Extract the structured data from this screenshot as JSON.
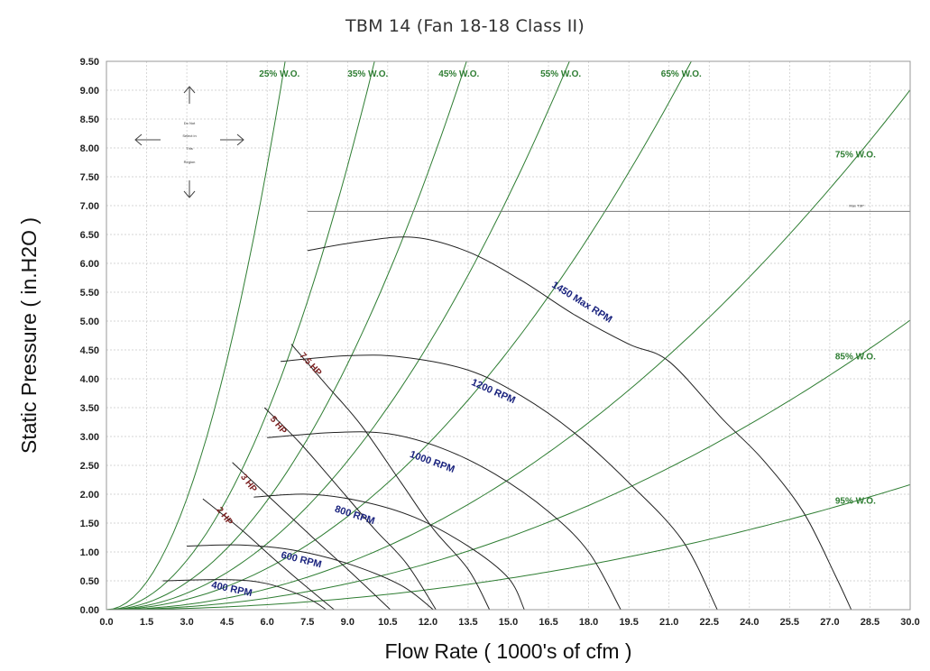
{
  "chart_data": {
    "type": "line",
    "title": "TBM 14 (Fan 18-18 Class II)",
    "xlabel": "Flow Rate ( 1000's of cfm )",
    "ylabel": "Static Pressure ( in.H2O )",
    "xlim": [
      0,
      30
    ],
    "ylim": [
      0,
      9.5
    ],
    "x_ticks": [
      "0.0",
      "1.5",
      "3.0",
      "4.5",
      "6.0",
      "7.5",
      "9.0",
      "10.5",
      "12.0",
      "13.5",
      "15.0",
      "16.5",
      "18.0",
      "19.5",
      "21.0",
      "22.5",
      "24.0",
      "25.5",
      "27.0",
      "28.5",
      "30.0"
    ],
    "y_ticks": [
      "0.00",
      "0.50",
      "1.00",
      "1.50",
      "2.00",
      "2.50",
      "3.00",
      "3.50",
      "4.00",
      "4.50",
      "5.00",
      "5.50",
      "6.00",
      "6.50",
      "7.00",
      "7.50",
      "8.00",
      "8.50",
      "9.00",
      "9.50"
    ],
    "grid": true,
    "wide_open_lines": [
      {
        "name": "25% W.O.",
        "label_x": 5.7,
        "label_y": 9.3
      },
      {
        "name": "35% W.O.",
        "label_x": 9.0,
        "label_y": 9.3
      },
      {
        "name": "45% W.O.",
        "label_x": 12.4,
        "label_y": 9.3
      },
      {
        "name": "55% W.O.",
        "label_x": 16.2,
        "label_y": 9.3
      },
      {
        "name": "65% W.O.",
        "label_x": 20.7,
        "label_y": 9.3
      },
      {
        "name": "75% W.O.",
        "label_x": 27.2,
        "label_y": 7.9
      },
      {
        "name": "85% W.O.",
        "label_x": 27.2,
        "label_y": 4.4
      },
      {
        "name": "95% W.O.",
        "label_x": 27.2,
        "label_y": 1.9
      }
    ],
    "rpm_curves": [
      {
        "name": "400 RPM",
        "points": [
          [
            2.1,
            0.5
          ],
          [
            4.5,
            0.52
          ],
          [
            6.0,
            0.45
          ],
          [
            7.5,
            0.2
          ],
          [
            8.2,
            0.0
          ]
        ],
        "label_x": 3.9,
        "label_y": 0.38,
        "label_angle": 12
      },
      {
        "name": "600 RPM",
        "points": [
          [
            3.0,
            1.1
          ],
          [
            5.0,
            1.12
          ],
          [
            7.0,
            1.03
          ],
          [
            9.0,
            0.8
          ],
          [
            11.0,
            0.42
          ],
          [
            12.2,
            0.0
          ]
        ],
        "label_x": 6.5,
        "label_y": 0.9,
        "label_angle": 14
      },
      {
        "name": "800 RPM",
        "points": [
          [
            5.5,
            1.95
          ],
          [
            7.5,
            2.0
          ],
          [
            9.5,
            1.88
          ],
          [
            11.5,
            1.6
          ],
          [
            13.5,
            1.1
          ],
          [
            15.0,
            0.55
          ],
          [
            15.6,
            0.0
          ]
        ],
        "label_x": 8.5,
        "label_y": 1.7,
        "label_angle": 18
      },
      {
        "name": "1000 RPM",
        "points": [
          [
            6.0,
            2.98
          ],
          [
            8.5,
            3.07
          ],
          [
            10.5,
            3.05
          ],
          [
            12.5,
            2.8
          ],
          [
            14.5,
            2.35
          ],
          [
            16.5,
            1.7
          ],
          [
            18.0,
            1.0
          ],
          [
            19.2,
            0.0
          ]
        ],
        "label_x": 11.3,
        "label_y": 2.65,
        "label_angle": 20
      },
      {
        "name": "1200 RPM",
        "points": [
          [
            6.5,
            4.3
          ],
          [
            9.0,
            4.4
          ],
          [
            11.0,
            4.38
          ],
          [
            13.5,
            4.15
          ],
          [
            15.5,
            3.7
          ],
          [
            17.5,
            3.05
          ],
          [
            19.5,
            2.2
          ],
          [
            21.5,
            1.2
          ],
          [
            22.8,
            0.0
          ]
        ],
        "label_x": 13.6,
        "label_y": 3.9,
        "label_angle": 24
      },
      {
        "name": "1450 Max RPM",
        "points": [
          [
            7.5,
            6.22
          ],
          [
            9.5,
            6.38
          ],
          [
            11.5,
            6.45
          ],
          [
            13.5,
            6.2
          ],
          [
            15.5,
            5.7
          ],
          [
            17.5,
            5.1
          ],
          [
            19.5,
            4.6
          ],
          [
            21.0,
            4.3
          ],
          [
            23.0,
            3.3
          ],
          [
            24.5,
            2.6
          ],
          [
            26.0,
            1.7
          ],
          [
            27.2,
            0.6
          ],
          [
            27.8,
            0.0
          ]
        ],
        "label_x": 16.6,
        "label_y": 5.6,
        "label_angle": 32
      }
    ],
    "hp_curves": [
      {
        "name": "2 HP",
        "points": [
          [
            3.6,
            1.92
          ],
          [
            5.0,
            1.4
          ],
          [
            6.2,
            0.9
          ],
          [
            7.2,
            0.5
          ],
          [
            8.5,
            0.0
          ]
        ],
        "label_x": 4.1,
        "label_y": 1.73,
        "label_angle": 52
      },
      {
        "name": "3 HP",
        "points": [
          [
            4.7,
            2.55
          ],
          [
            6.2,
            1.9
          ],
          [
            7.7,
            1.25
          ],
          [
            9.0,
            0.7
          ],
          [
            10.6,
            0.0
          ]
        ],
        "label_x": 5.0,
        "label_y": 2.3,
        "label_angle": 52
      },
      {
        "name": "5 HP",
        "points": [
          [
            5.9,
            3.5
          ],
          [
            7.2,
            2.9
          ],
          [
            8.7,
            2.1
          ],
          [
            10.0,
            1.4
          ],
          [
            11.2,
            0.8
          ],
          [
            12.3,
            0.0
          ]
        ],
        "label_x": 6.1,
        "label_y": 3.3,
        "label_angle": 50
      },
      {
        "name": "7.5 HP",
        "points": [
          [
            6.9,
            4.6
          ],
          [
            8.2,
            3.9
          ],
          [
            9.5,
            3.2
          ],
          [
            11.0,
            2.2
          ],
          [
            12.2,
            1.4
          ],
          [
            13.5,
            0.7
          ],
          [
            14.3,
            0.0
          ]
        ],
        "label_x": 7.2,
        "label_y": 4.4,
        "label_angle": 48
      }
    ],
    "max_tsp": {
      "label": "Max TSP",
      "y": 6.9,
      "x_start": 7.5,
      "x_end": 30
    }
  },
  "note": {
    "lines": [
      "Do Not",
      "Select in",
      "This",
      "Region"
    ]
  },
  "colors": {
    "wide_open": "#2e7d32",
    "rpm": "#222222",
    "hp": "#222222",
    "grid": "#c8c8c8",
    "rpm_label": "#1a237e",
    "hp_label": "#7a1f1f",
    "wo_label": "#2e7d32"
  }
}
